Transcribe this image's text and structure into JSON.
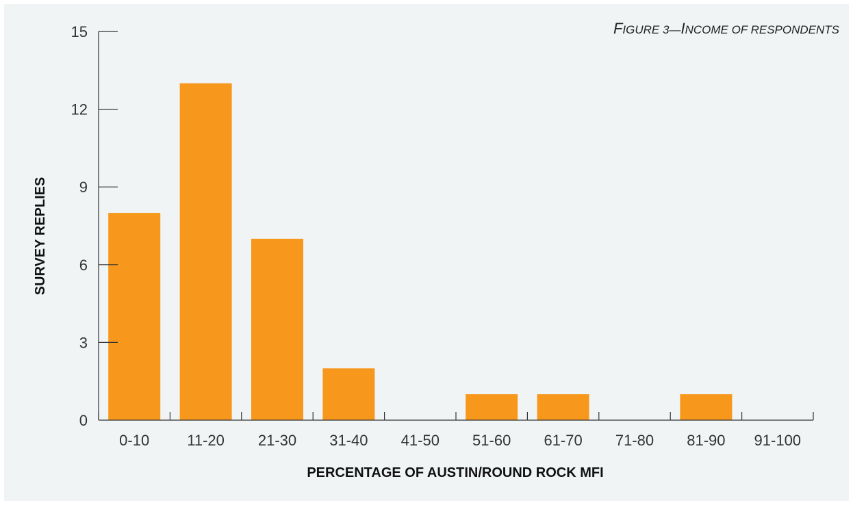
{
  "chart_data": {
    "type": "bar",
    "title": "Figure 3—Income of respondents",
    "xlabel": "PERCENTAGE OF AUSTIN/ROUND ROCK MFI",
    "ylabel": "SURVEY REPLIES",
    "categories": [
      "0-10",
      "11-20",
      "21-30",
      "31-40",
      "41-50",
      "51-60",
      "61-70",
      "71-80",
      "81-90",
      "91-100"
    ],
    "values": [
      8,
      13,
      7,
      2,
      0,
      1,
      1,
      0,
      1,
      0
    ],
    "ylim": [
      0,
      15
    ],
    "yticks": [
      0,
      3,
      6,
      9,
      12,
      15
    ],
    "grid": false,
    "colors": {
      "bar": "#f7981d",
      "axis": "#333333",
      "background": "#f1f4f4"
    }
  }
}
